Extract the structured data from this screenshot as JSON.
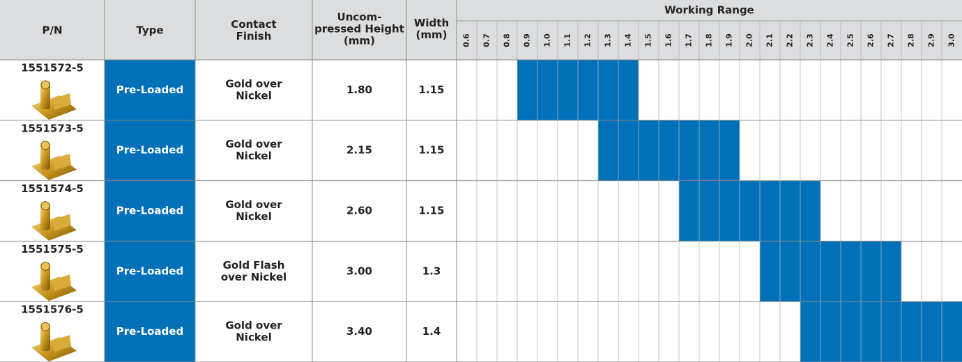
{
  "table": {
    "columns": {
      "pn": "P/N",
      "type": "Type",
      "finish": [
        "Contact",
        "Finish"
      ],
      "height": [
        "Uncom-",
        "pressed Height",
        "(mm)"
      ],
      "width": [
        "Width",
        "(mm)"
      ],
      "range_title": "Working Range",
      "range_ticks": [
        "0.6",
        "0.7",
        "0.8",
        "0.9",
        "1.0",
        "1.1",
        "1.2",
        "1.3",
        "1.4",
        "1.5",
        "1.6",
        "1.7",
        "1.8",
        "1.9",
        "2.0",
        "2.1",
        "2.2",
        "2.3",
        "2.4",
        "2.5",
        "2.6",
        "2.7",
        "2.8",
        "2.9",
        "3.0"
      ]
    },
    "rows": [
      {
        "pn": "1551572-5",
        "type": "Pre-Loaded",
        "finish": [
          "Gold over",
          "Nickel"
        ],
        "height": "1.80",
        "width": "1.15",
        "range": [
          0.9,
          1.4
        ]
      },
      {
        "pn": "1551573-5",
        "type": "Pre-Loaded",
        "finish": [
          "Gold over",
          "Nickel"
        ],
        "height": "2.15",
        "width": "1.15",
        "range": [
          1.3,
          1.9
        ]
      },
      {
        "pn": "1551574-5",
        "type": "Pre-Loaded",
        "finish": [
          "Gold over",
          "Nickel"
        ],
        "height": "2.60",
        "width": "1.15",
        "range": [
          1.7,
          2.3
        ]
      },
      {
        "pn": "1551575-5",
        "type": "Pre-Loaded",
        "finish": [
          "Gold Flash",
          "over Nickel"
        ],
        "height": "3.00",
        "width": "1.3",
        "range": [
          2.1,
          2.7
        ]
      },
      {
        "pn": "1551576-5",
        "type": "Pre-Loaded",
        "finish": [
          "Gold over",
          "Nickel"
        ],
        "height": "3.40",
        "width": "1.4",
        "range": [
          2.3,
          3.0
        ]
      }
    ]
  }
}
